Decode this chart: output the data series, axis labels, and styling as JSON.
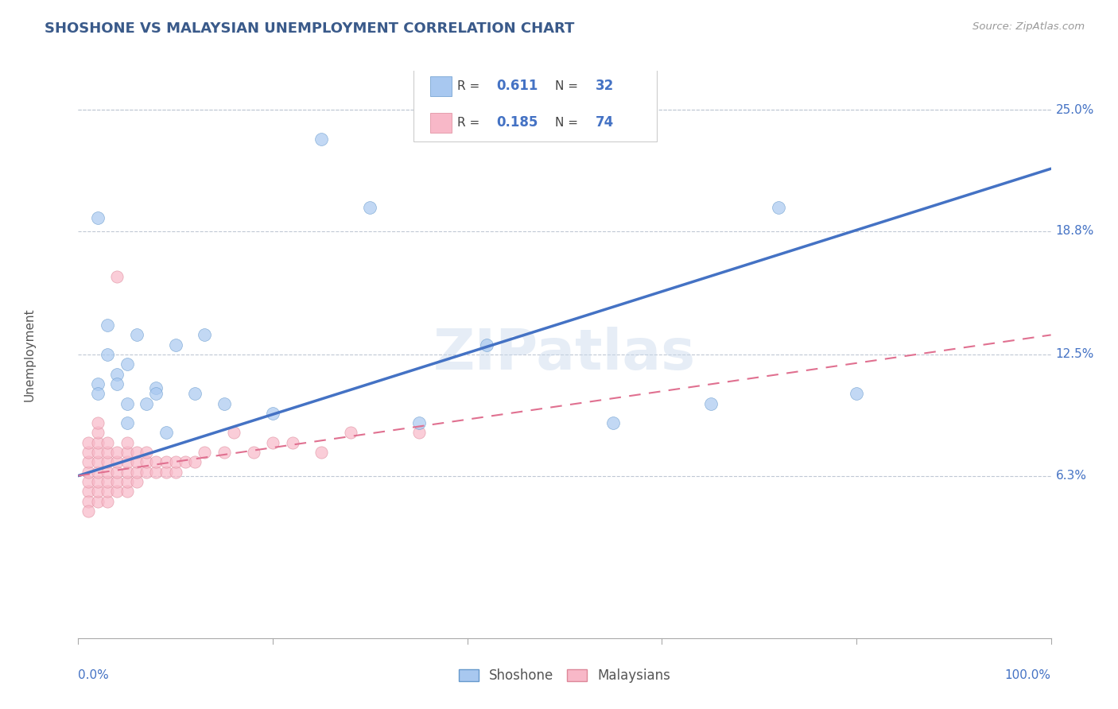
{
  "title": "SHOSHONE VS MALAYSIAN UNEMPLOYMENT CORRELATION CHART",
  "source": "Source: ZipAtlas.com",
  "ylabel": "Unemployment",
  "legend_shoshone": "Shoshone",
  "legend_malaysian": "Malaysians",
  "r_shoshone": "0.611",
  "n_shoshone": "32",
  "r_malaysian": "0.185",
  "n_malaysian": "74",
  "ytick_labels": [
    "6.3%",
    "12.5%",
    "18.8%",
    "25.0%"
  ],
  "ytick_values": [
    6.3,
    12.5,
    18.8,
    25.0
  ],
  "xlim": [
    0,
    100
  ],
  "ylim": [
    -2,
    27
  ],
  "color_shoshone_fill": "#A8C8F0",
  "color_shoshone_edge": "#6699CC",
  "color_malaysian_fill": "#F8B8C8",
  "color_malaysian_edge": "#DD8899",
  "color_shoshone_line": "#4472C4",
  "color_malaysian_line": "#E07090",
  "color_grid": "#C0C8D4",
  "title_color": "#3A5A8A",
  "axis_label_color": "#4472C4",
  "tick_color": "#4472C4",
  "watermark": "ZIPatlas",
  "shoshone_line_x0": 0,
  "shoshone_line_y0": 6.3,
  "shoshone_line_x1": 100,
  "shoshone_line_y1": 22.0,
  "malaysian_line_x0": 0,
  "malaysian_line_y0": 6.3,
  "malaysian_line_x1": 100,
  "malaysian_line_y1": 13.5,
  "shoshone_x": [
    2,
    2,
    2,
    3,
    3,
    4,
    4,
    5,
    5,
    5,
    6,
    7,
    8,
    8,
    9,
    10,
    12,
    13,
    15,
    20,
    25,
    30,
    35,
    42,
    55,
    65,
    72,
    80
  ],
  "shoshone_y": [
    19.5,
    11.0,
    10.5,
    14.0,
    12.5,
    11.5,
    11.0,
    12.0,
    10.0,
    9.0,
    13.5,
    10.0,
    10.8,
    10.5,
    8.5,
    13.0,
    10.5,
    13.5,
    10.0,
    9.5,
    23.5,
    20.0,
    9.0,
    13.0,
    9.0,
    10.0,
    20.0,
    10.5
  ],
  "malaysian_x": [
    1,
    1,
    1,
    1,
    1,
    1,
    1,
    1,
    2,
    2,
    2,
    2,
    2,
    2,
    2,
    2,
    2,
    3,
    3,
    3,
    3,
    3,
    3,
    3,
    4,
    4,
    4,
    4,
    4,
    4,
    5,
    5,
    5,
    5,
    5,
    5,
    6,
    6,
    6,
    6,
    7,
    7,
    7,
    8,
    8,
    9,
    9,
    10,
    10,
    11,
    12,
    13,
    15,
    16,
    18,
    20,
    22,
    25,
    28,
    35
  ],
  "malaysian_y": [
    5.5,
    6.0,
    6.5,
    7.0,
    7.5,
    8.0,
    5.0,
    4.5,
    5.0,
    5.5,
    6.0,
    6.5,
    7.0,
    7.5,
    8.0,
    8.5,
    9.0,
    5.0,
    5.5,
    6.0,
    6.5,
    7.0,
    7.5,
    8.0,
    5.5,
    6.0,
    6.5,
    7.0,
    7.5,
    16.5,
    5.5,
    6.0,
    6.5,
    7.0,
    7.5,
    8.0,
    6.0,
    6.5,
    7.0,
    7.5,
    6.5,
    7.0,
    7.5,
    6.5,
    7.0,
    6.5,
    7.0,
    6.5,
    7.0,
    7.0,
    7.0,
    7.5,
    7.5,
    8.5,
    7.5,
    8.0,
    8.0,
    7.5,
    8.5,
    8.5
  ]
}
